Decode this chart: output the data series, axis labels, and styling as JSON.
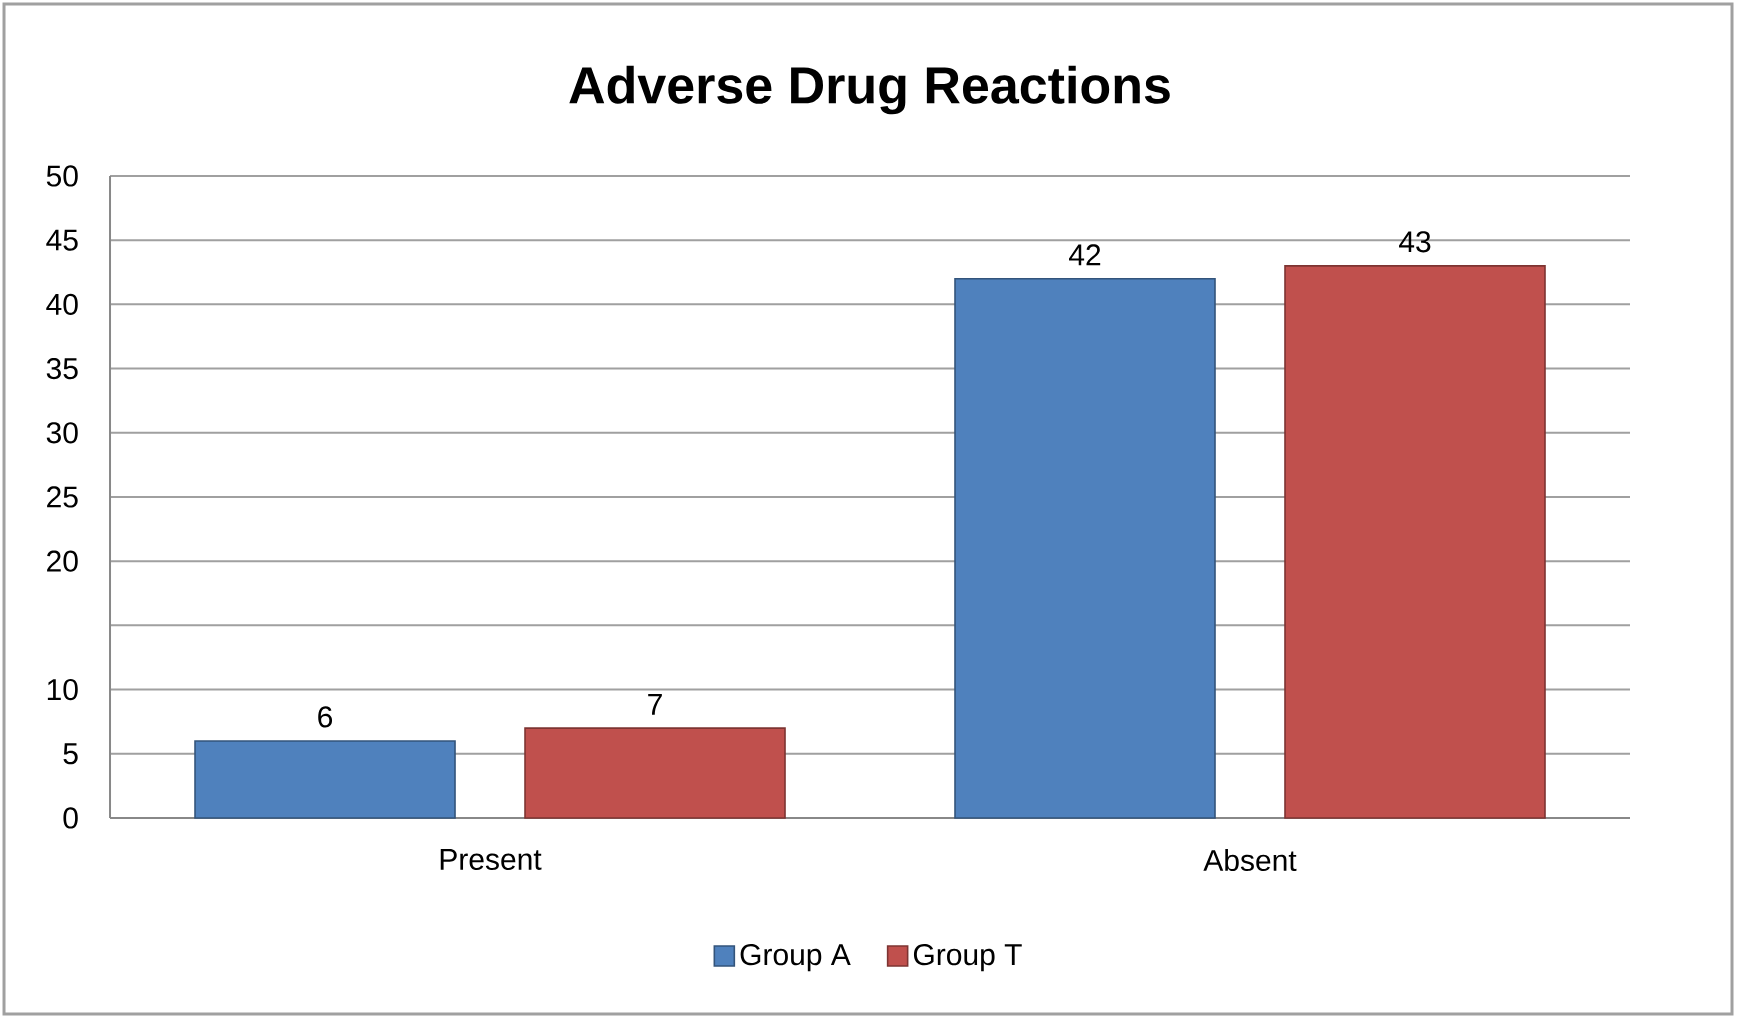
{
  "chart_data": {
    "type": "bar",
    "title": "Adverse Drug Reactions",
    "categories": [
      "Present",
      "Absent"
    ],
    "series": [
      {
        "name": "Group A",
        "color": "#4f81bd",
        "values": [
          6,
          42
        ]
      },
      {
        "name": "Group T",
        "color": "#c0504d",
        "values": [
          7,
          43
        ]
      }
    ],
    "ylim": [
      0,
      50
    ],
    "yticks": [
      0,
      5,
      10,
      {
        "value": 15,
        "label": null
      },
      20,
      25,
      30,
      35,
      40,
      45,
      50
    ],
    "grid": "y",
    "legend": "bottom",
    "data_labels": true
  }
}
